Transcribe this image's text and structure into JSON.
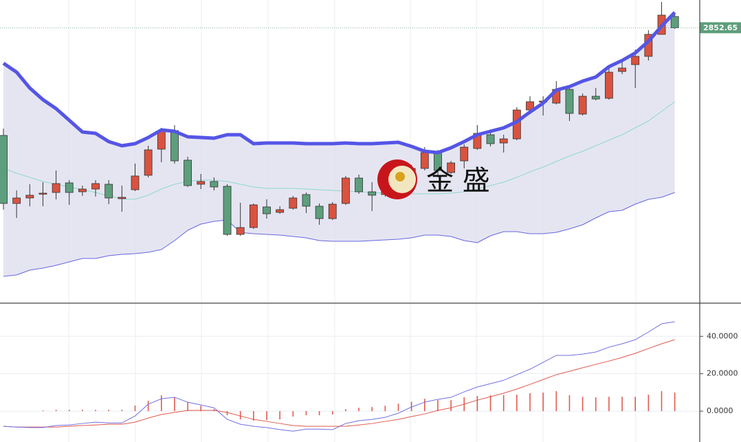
{
  "chart_data": [
    {
      "type": "candlestick",
      "ylim": [
        2453,
        2893
      ],
      "up_color": "#d9533f",
      "down_color": "#5d9e7c",
      "open": [
        2696,
        2597,
        2605,
        2611,
        2613,
        2627,
        2614,
        2618,
        2625,
        2604,
        2617,
        2638,
        2676,
        2703,
        2660,
        2625,
        2629,
        2622,
        2552,
        2562,
        2592,
        2584,
        2590,
        2610,
        2593,
        2575,
        2597,
        2634,
        2614,
        2610,
        2623,
        2637,
        2648,
        2671,
        2642,
        2659,
        2677,
        2697,
        2685,
        2691,
        2733,
        2745,
        2743,
        2763,
        2727,
        2753,
        2750,
        2789,
        2799,
        2811,
        2843,
        2869
      ],
      "high": [
        2706,
        2616,
        2625,
        2628,
        2645,
        2631,
        2623,
        2631,
        2631,
        2623,
        2655,
        2681,
        2707,
        2711,
        2665,
        2640,
        2635,
        2625,
        2598,
        2597,
        2603,
        2593,
        2608,
        2613,
        2597,
        2599,
        2637,
        2639,
        2628,
        2625,
        2641,
        2653,
        2679,
        2675,
        2659,
        2683,
        2711,
        2701,
        2697,
        2737,
        2753,
        2753,
        2775,
        2769,
        2757,
        2765,
        2795,
        2805,
        2821,
        2849,
        2890,
        2873
      ],
      "low": [
        2588,
        2576,
        2593,
        2593,
        2603,
        2595,
        2608,
        2607,
        2596,
        2585,
        2615,
        2635,
        2657,
        2655,
        2621,
        2618,
        2616,
        2550,
        2550,
        2560,
        2575,
        2582,
        2588,
        2583,
        2566,
        2573,
        2595,
        2611,
        2586,
        2607,
        2619,
        2635,
        2645,
        2635,
        2640,
        2648,
        2675,
        2680,
        2671,
        2689,
        2730,
        2725,
        2741,
        2717,
        2725,
        2747,
        2748,
        2785,
        2765,
        2805,
        2843,
        2851
      ],
      "close": [
        2597,
        2605,
        2609,
        2612,
        2626,
        2613,
        2618,
        2626,
        2605,
        2606,
        2637,
        2675,
        2703,
        2659,
        2623,
        2629,
        2621,
        2552,
        2562,
        2595,
        2582,
        2588,
        2605,
        2593,
        2575,
        2596,
        2634,
        2614,
        2609,
        2621,
        2635,
        2648,
        2671,
        2645,
        2656,
        2679,
        2699,
        2684,
        2691,
        2733,
        2745,
        2746,
        2763,
        2728,
        2753,
        2749,
        2788,
        2794,
        2811,
        2843,
        2871,
        2852.65
      ],
      "band_fill": "#dcdcee",
      "series": [
        {
          "color": "#5555e6",
          "values": [
            2801,
            2788,
            2765,
            2748,
            2735,
            2718,
            2701,
            2699,
            2687,
            2681,
            2684,
            2693,
            2704,
            2702,
            2694,
            2693,
            2692,
            2697,
            2697,
            2684,
            2685,
            2685,
            2685,
            2684,
            2684,
            2684,
            2685,
            2684,
            2684,
            2685,
            2686,
            2680,
            2673,
            2671,
            2678,
            2687,
            2697,
            2702,
            2707,
            2716,
            2730,
            2743,
            2762,
            2767,
            2775,
            2781,
            2796,
            2805,
            2816,
            2833,
            2855,
            2875
          ]
        },
        {
          "color": "#8fd8c8",
          "values": [
            2648,
            2641,
            2635,
            2629,
            2625,
            2621,
            2617,
            2613,
            2608,
            2604,
            2603,
            2609,
            2618,
            2625,
            2629,
            2631,
            2631,
            2629,
            2625,
            2621,
            2619,
            2619,
            2619,
            2618,
            2617,
            2616,
            2615,
            2614,
            2613,
            2612,
            2612,
            2611,
            2611,
            2611,
            2612,
            2614,
            2618,
            2623,
            2628,
            2635,
            2643,
            2650,
            2658,
            2666,
            2673,
            2681,
            2689,
            2697,
            2707,
            2717,
            2731,
            2745
          ]
        },
        {
          "color": "#6666e0",
          "values": [
            2491,
            2493,
            2500,
            2503,
            2507,
            2512,
            2517,
            2517,
            2521,
            2523,
            2524,
            2526,
            2530,
            2543,
            2558,
            2567,
            2571,
            2573,
            2555,
            2553,
            2552,
            2551,
            2549,
            2547,
            2543,
            2542,
            2542,
            2542,
            2543,
            2544,
            2545,
            2547,
            2551,
            2551,
            2549,
            2543,
            2540,
            2550,
            2556,
            2556,
            2553,
            2553,
            2555,
            2560,
            2566,
            2576,
            2585,
            2587,
            2596,
            2603,
            2606,
            2613
          ]
        }
      ],
      "last_price": 2852.65,
      "watermark": "金 盛"
    },
    {
      "type": "macd",
      "ylim": [
        -16.5,
        57
      ],
      "yticks": [
        {
          "value": 0,
          "label": "0.0000"
        },
        {
          "value": 20,
          "label": "20.0000"
        },
        {
          "value": 40,
          "label": "40.0000"
        }
      ],
      "grid": true,
      "bar_color": "#e05a4e",
      "bars": [
        0,
        0,
        0,
        0.4,
        0.7,
        0.7,
        0.7,
        0.7,
        0.7,
        0.7,
        3,
        5.5,
        8.5,
        7.4,
        4.8,
        2.9,
        1.1,
        -2.2,
        -4.4,
        -5.1,
        -4.8,
        -4.4,
        -2.9,
        -2.2,
        -2.2,
        -1.8,
        1.1,
        1.8,
        2.2,
        2.9,
        4,
        5.1,
        6.6,
        5.9,
        5.9,
        7.4,
        8.1,
        8.5,
        8.5,
        8.8,
        9.6,
        9.9,
        10.7,
        8.5,
        7.7,
        7.4,
        7.7,
        7.7,
        7.7,
        8.8,
        10.7,
        9.9
      ],
      "series": [
        {
          "color": "#6f6fe2",
          "values": [
            -8.1,
            -8.5,
            -8.8,
            -8.8,
            -7.7,
            -7.4,
            -6.6,
            -5.9,
            -6.3,
            -6.3,
            -2.6,
            3.7,
            6.6,
            7.4,
            4.8,
            3.3,
            1.8,
            -4.4,
            -7,
            -8.1,
            -8.8,
            -9.9,
            -10.7,
            -9.6,
            -9.6,
            -9.9,
            -6.6,
            -5.1,
            -4.4,
            -3.3,
            -1.1,
            2.2,
            4.8,
            6.3,
            7.4,
            10.3,
            12.9,
            14.7,
            16.5,
            19.5,
            22.4,
            26.1,
            29.8,
            29.8,
            30.5,
            31.6,
            34.2,
            36,
            38.2,
            42.3,
            46.7,
            47.8
          ]
        },
        {
          "color": "#e0584c",
          "values": [
            -8.1,
            -8.5,
            -8.5,
            -8.5,
            -8.5,
            -8.1,
            -7.7,
            -7.4,
            -7,
            -7,
            -5.9,
            -3.7,
            -1.8,
            -0.7,
            0.4,
            0.4,
            0.4,
            -0.7,
            -2.6,
            -4.4,
            -5.5,
            -6.6,
            -7.7,
            -8.1,
            -8.1,
            -8.1,
            -8.1,
            -7.4,
            -6.6,
            -5.5,
            -4.4,
            -2.9,
            -1.5,
            0.4,
            1.8,
            3.7,
            5.9,
            7.7,
            9.6,
            11.8,
            14.3,
            16.9,
            19.5,
            21.3,
            23.2,
            25,
            26.8,
            28.7,
            30.9,
            33.5,
            36,
            38.2
          ]
        }
      ]
    }
  ]
}
